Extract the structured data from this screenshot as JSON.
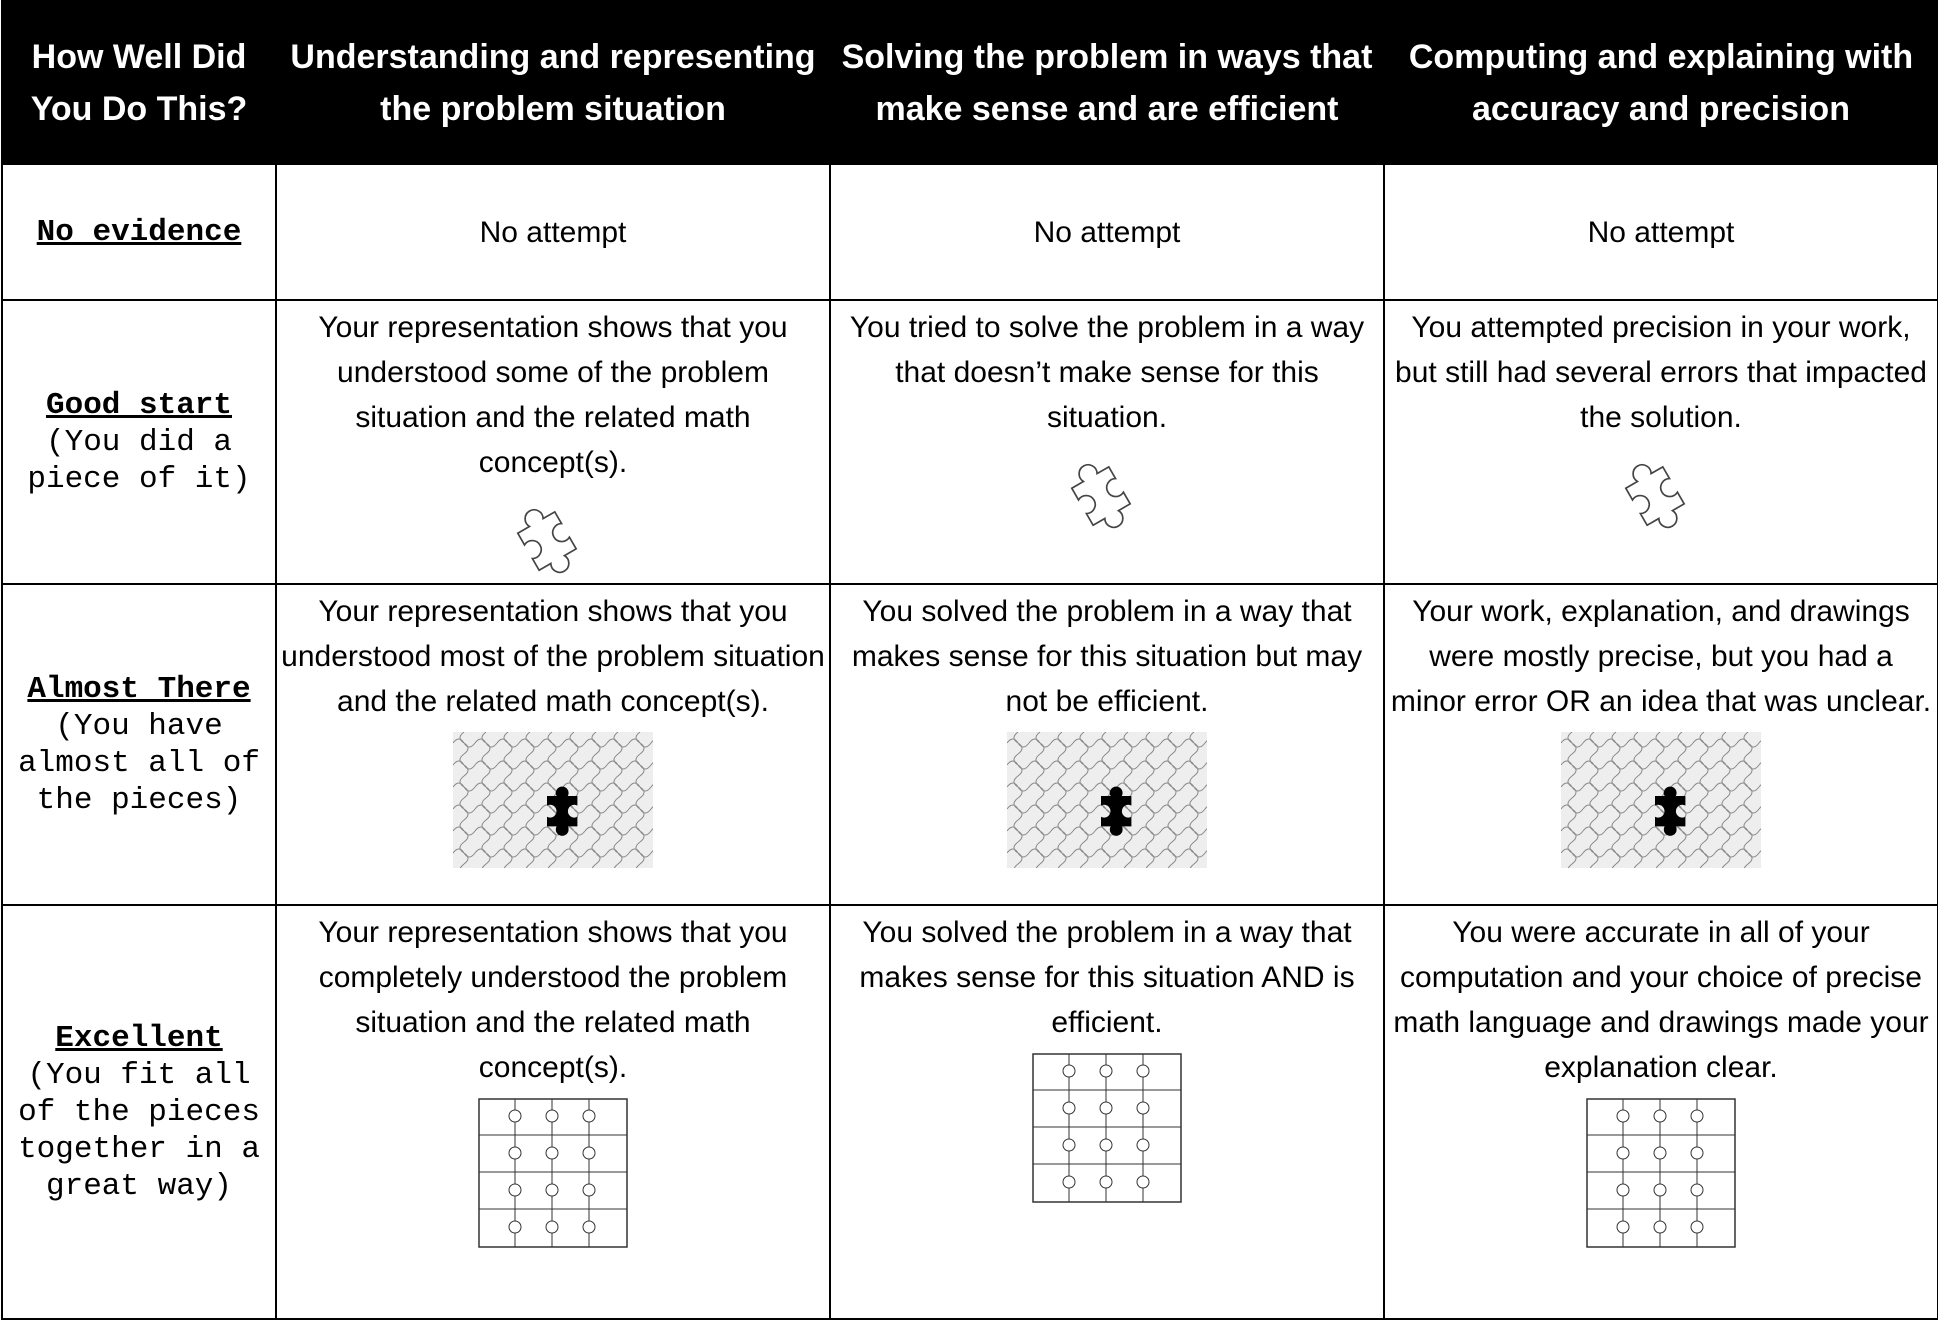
{
  "header": [
    "How Well Did You Do This?",
    "Understanding and representing the problem situation",
    "Solving the problem in ways that make sense and are efficient",
    "Computing and explaining with accuracy and precision"
  ],
  "rows": [
    {
      "level": "No evidence",
      "cells": [
        "No attempt",
        "No attempt",
        "No attempt"
      ]
    },
    {
      "level": "Good start",
      "description": "(You did a piece of it)",
      "cells": [
        "Your representation shows that you understood some of the problem situation and the related math concept(s).",
        "You tried to solve the problem in a way that doesn’t make sense for this situation.",
        "You attempted precision in your work, but still had several errors that impacted the solution."
      ]
    },
    {
      "level": "Almost There",
      "description": "(You have almost all of the pieces)",
      "cells": [
        "Your representation shows that you understood most of the problem situation and the related math concept(s).",
        "You solved the problem in a way that makes sense for this situation but may not be efficient.",
        "Your work, explanation, and drawings were mostly precise, but you had a minor error OR an idea that was unclear."
      ]
    },
    {
      "level": "Excellent",
      "description": "(You fit all of the pieces together in a great way)",
      "cells": [
        "Your representation shows that you completely understood the problem situation and the related math concept(s).",
        "You solved the problem in a way that makes sense for this situation AND is efficient.",
        "You were accurate in all of your computation and your choice of precise math language and drawings made your explanation clear."
      ]
    }
  ]
}
